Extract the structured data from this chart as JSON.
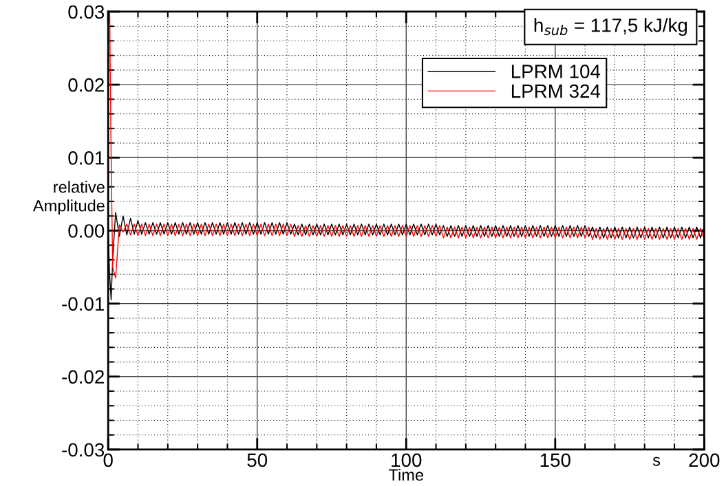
{
  "chart_data": {
    "type": "line",
    "xlabel": "Time",
    "ylabel": "relative\nAmplitude",
    "legend_title": "h$_{sub}$ = 117,5 kJ/kg",
    "annotations": [
      "s"
    ],
    "xlim": [
      0,
      200
    ],
    "ylim": [
      -0.03,
      0.03
    ],
    "xticks": [
      0,
      50,
      100,
      150,
      200
    ],
    "yticks": [
      -0.03,
      -0.02,
      -0.01,
      {
        "value": 0,
        "label": "0.00"
      },
      0.01,
      0.02,
      0.03
    ],
    "grid": true,
    "legend": "top right",
    "line_style": "solid",
    "marker": "none",
    "x": [
      0,
      0.5,
      1.0,
      1.5,
      2.5,
      3.75,
      5.0,
      6.25,
      7.5,
      8.75,
      10.0,
      11.25,
      12.5,
      13.75,
      15.0,
      16.25,
      17.5,
      18.75,
      20.0,
      21.25,
      22.5,
      23.75,
      25.0,
      26.25,
      27.5,
      28.75,
      30.0,
      31.25,
      32.5,
      33.75,
      35.0,
      36.25,
      37.5,
      38.75,
      40.0,
      41.25,
      42.5,
      43.75,
      45.0,
      46.25,
      47.5,
      48.75,
      50.0,
      51.25,
      52.5,
      53.75,
      55.0,
      56.25,
      57.5,
      58.75,
      60.0,
      61.25,
      62.5,
      63.75,
      65.0,
      66.25,
      67.5,
      68.75,
      70.0,
      71.25,
      72.5,
      73.75,
      75.0,
      76.25,
      77.5,
      78.75,
      80.0,
      81.25,
      82.5,
      83.75,
      85.0,
      86.25,
      87.5,
      88.75,
      90.0,
      91.25,
      92.5,
      93.75,
      95.0,
      96.25,
      97.5,
      98.75,
      100.0,
      101.25,
      102.5,
      103.75,
      105.0,
      106.25,
      107.5,
      108.75,
      110.0,
      111.25,
      112.5,
      113.75,
      115.0,
      116.25,
      117.5,
      118.75,
      120.0,
      121.25,
      122.5,
      123.75,
      125.0,
      126.25,
      127.5,
      128.75,
      130.0,
      131.25,
      132.5,
      133.75,
      135.0,
      136.25,
      137.5,
      138.75,
      140.0,
      141.25,
      142.5,
      143.75,
      145.0,
      146.25,
      147.5,
      148.75,
      150.0,
      151.25,
      152.5,
      153.75,
      155.0,
      156.25,
      157.5,
      158.75,
      160.0,
      161.25,
      162.5,
      163.75,
      165.0,
      166.25,
      167.5,
      168.75,
      170.0,
      171.25,
      172.5,
      173.75,
      175.0,
      176.25,
      177.5,
      178.75,
      180.0,
      181.25,
      182.5,
      183.75,
      185.0,
      186.25,
      187.5,
      188.75,
      190.0,
      191.25,
      192.5,
      193.75,
      195.0,
      196.25,
      197.5,
      198.75,
      200.0
    ],
    "series": [
      {
        "name": "LPRM 104",
        "color": "#000000",
        "values": [
          0,
          -0.006,
          -0.0095,
          -0.004,
          0.0025,
          -0.0008,
          0.002,
          -0.0006,
          0.0017,
          -0.0005,
          0.0014,
          -0.0005,
          0.0011,
          -0.0005,
          0.0011,
          -0.0005,
          0.0011,
          -0.0005,
          0.0011,
          -0.0005,
          0.0011,
          -0.0005,
          0.0011,
          -0.0005,
          0.0011,
          -0.0005,
          0.0011,
          -0.0005,
          0.0011,
          -0.0005,
          0.0011,
          -0.0005,
          0.0011,
          -0.0005,
          0.0011,
          -0.0005,
          0.0011,
          -0.0005,
          0.0011,
          -0.0005,
          0.0011,
          -0.0005,
          0.0011,
          -0.0005,
          0.0011,
          -0.0005,
          0.0011,
          -0.0005,
          0.0011,
          -0.0005,
          0.0011,
          -0.0005,
          0.0009,
          -0.0006,
          0.0009,
          -0.0006,
          0.0009,
          -0.0006,
          0.0009,
          -0.0006,
          0.0009,
          -0.0006,
          0.0009,
          -0.0006,
          0.0009,
          -0.0006,
          0.0009,
          -0.0006,
          0.0009,
          -0.0006,
          0.0009,
          -0.0006,
          0.0009,
          -0.0006,
          0.0009,
          -0.0006,
          0.0009,
          -0.0006,
          0.0009,
          -0.0006,
          0.0009,
          -0.0006,
          0.0009,
          -0.0006,
          0.0009,
          -0.0006,
          0.0009,
          -0.0006,
          0.0009,
          -0.0006,
          0.0009,
          -0.0006,
          0.0007,
          -0.0008,
          0.0007,
          -0.0008,
          0.0007,
          -0.0008,
          0.0007,
          -0.0008,
          0.0007,
          -0.0008,
          0.0007,
          -0.0008,
          0.0007,
          -0.0008,
          0.0007,
          -0.0008,
          0.0007,
          -0.0008,
          0.0007,
          -0.0008,
          0.0007,
          -0.0008,
          0.0007,
          -0.0008,
          0.0007,
          -0.0008,
          0.0007,
          -0.0008,
          0.0007,
          -0.0008,
          0.0007,
          -0.0008,
          0.0007,
          -0.0008,
          0.0007,
          -0.0008,
          0.0007,
          -0.0008,
          0.0007,
          -0.0008,
          0.0005,
          -0.001,
          0.0005,
          -0.001,
          0.0005,
          -0.001,
          0.0005,
          -0.001,
          0.0005,
          -0.001,
          0.0005,
          -0.001,
          0.0005,
          -0.001,
          0.0005,
          -0.001,
          0.0005,
          -0.001,
          0.0005,
          -0.001,
          0.0005,
          -0.001,
          0.0005,
          -0.001,
          0.0005,
          -0.001,
          0.0005,
          -0.001,
          0.0005,
          -0.001,
          0.0005
        ]
      },
      {
        "name": "LPRM 324",
        "color": "#ff0000",
        "values": [
          null,
          0.03,
          0.01,
          -0.005,
          -0.0065,
          0.0008,
          -0.0002,
          0.0009,
          -0.0006,
          0.0009,
          -0.0007,
          0.0009,
          -0.0007,
          0.0009,
          -0.0007,
          0.0009,
          -0.0007,
          0.0009,
          -0.0007,
          0.0009,
          -0.0007,
          0.0009,
          -0.0007,
          0.0009,
          -0.0007,
          0.0009,
          -0.0007,
          0.0009,
          -0.0007,
          0.0009,
          -0.0007,
          0.0009,
          -0.0007,
          0.0009,
          -0.0007,
          0.0009,
          -0.0007,
          0.0009,
          -0.0007,
          0.0009,
          -0.0007,
          0.0009,
          -0.0007,
          0.0009,
          -0.0007,
          0.0009,
          -0.0007,
          0.0009,
          -0.0007,
          0.0009,
          -0.0007,
          0.0009,
          -0.0008,
          0.0007,
          -0.0008,
          0.0007,
          -0.0008,
          0.0007,
          -0.0008,
          0.0007,
          -0.0008,
          0.0007,
          -0.0008,
          0.0007,
          -0.0008,
          0.0007,
          -0.0008,
          0.0007,
          -0.0008,
          0.0007,
          -0.0008,
          0.0007,
          -0.0008,
          0.0007,
          -0.0008,
          0.0007,
          -0.0008,
          0.0007,
          -0.0008,
          0.0007,
          -0.0008,
          0.0007,
          -0.0008,
          0.0007,
          -0.0008,
          0.0007,
          -0.0008,
          0.0007,
          -0.0008,
          0.0007,
          -0.0008,
          0.0007,
          -0.001,
          0.0005,
          -0.001,
          0.0005,
          -0.001,
          0.0005,
          -0.001,
          0.0005,
          -0.001,
          0.0005,
          -0.001,
          0.0005,
          -0.001,
          0.0005,
          -0.001,
          0.0005,
          -0.001,
          0.0005,
          -0.001,
          0.0005,
          -0.001,
          0.0005,
          -0.001,
          0.0005,
          -0.001,
          0.0005,
          -0.001,
          0.0005,
          -0.001,
          0.0005,
          -0.001,
          0.0005,
          -0.001,
          0.0005,
          -0.001,
          0.0005,
          -0.001,
          0.0005,
          -0.001,
          0.0005,
          -0.0012,
          0.0003,
          -0.0012,
          0.0003,
          -0.0012,
          0.0003,
          -0.0012,
          0.0003,
          -0.0012,
          0.0003,
          -0.0012,
          0.0003,
          -0.0012,
          0.0003,
          -0.0012,
          0.0003,
          -0.0012,
          0.0003,
          -0.0012,
          0.0003,
          -0.0012,
          0.0003,
          -0.0012,
          0.0003,
          -0.0012,
          0.0003,
          -0.0012,
          0.0003,
          -0.0012,
          0.0003,
          -0.0012
        ]
      }
    ]
  }
}
